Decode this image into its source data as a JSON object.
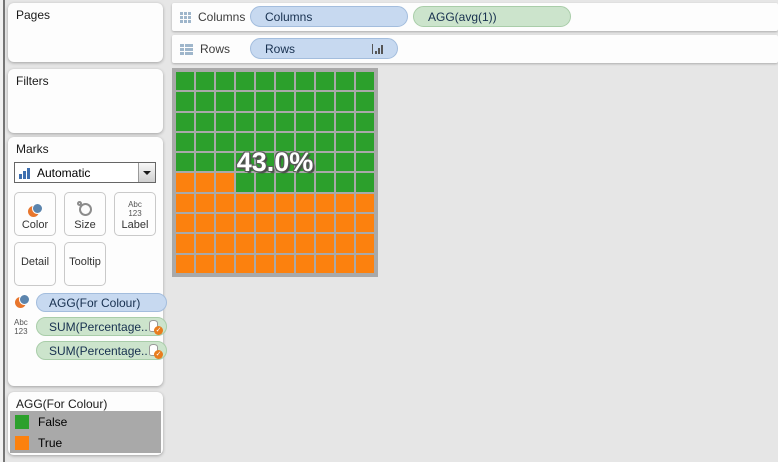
{
  "window": {
    "background": "#e6e6e6"
  },
  "sidebar": {
    "pages_title": "Pages",
    "filters_title": "Filters",
    "marks": {
      "title": "Marks",
      "mark_type_selected": "Automatic",
      "buttons": {
        "color": "Color",
        "size": "Size",
        "label": "Label",
        "label_icon_line1": "Abc",
        "label_icon_line2": "123",
        "detail": "Detail",
        "tooltip": "Tooltip"
      },
      "pills": [
        {
          "label": "AGG(For Colour)",
          "kind": "dimension"
        },
        {
          "label": "SUM(Percentage..",
          "kind": "measure"
        },
        {
          "label": "SUM(Percentage..",
          "kind": "measure"
        }
      ]
    },
    "legend": {
      "title": "AGG(For Colour)",
      "items": [
        {
          "label": "False",
          "color": "#2ca02c"
        },
        {
          "label": "True",
          "color": "#fc810e"
        }
      ]
    }
  },
  "shelves": {
    "columns_label": "Columns",
    "rows_label": "Rows",
    "columns_pills": [
      {
        "label": "Columns",
        "kind": "dimension"
      },
      {
        "label": "AGG(avg(1))",
        "kind": "measure"
      }
    ],
    "rows_pills": [
      {
        "label": "Rows",
        "kind": "dimension",
        "sorted": true
      }
    ]
  },
  "chart_data": {
    "type": "heatmap",
    "subtype": "waffle",
    "rows": 10,
    "cols": 10,
    "grid": [
      "FFFFFFFFFF",
      "FFFFFFFFFF",
      "FFFFFFFFFF",
      "FFFFFFFFFF",
      "FFFFFFFFFF",
      "TTTFFFFFFF",
      "TTTTTTTTTT",
      "TTTTTTTTTT",
      "TTTTTTTTTT",
      "TTTTTTTTTT"
    ],
    "colors": {
      "F": "#2ca02c",
      "T": "#fc810e"
    },
    "true_cells": 43,
    "false_cells": 57,
    "label": "43.0%",
    "legend_entries": [
      {
        "label": "False",
        "value": 57,
        "color": "#2ca02c"
      },
      {
        "label": "True",
        "value": 43,
        "color": "#fc810e"
      }
    ]
  }
}
